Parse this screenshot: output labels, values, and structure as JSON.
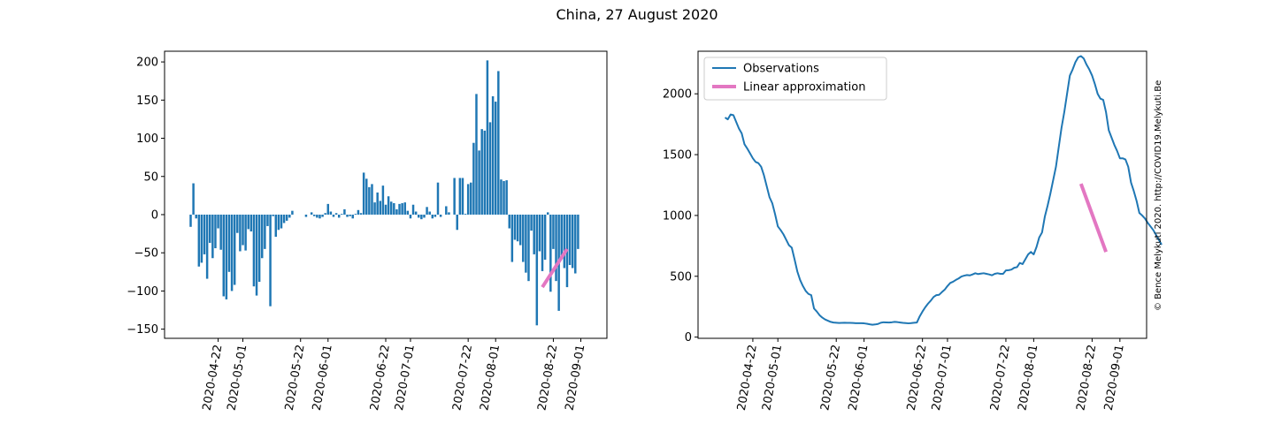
{
  "figure": {
    "suptitle": "China, 27 August 2020",
    "watermark": "© Bence Melykuti 2020. http://COVID19.Melykuti.Be"
  },
  "colors": {
    "observations": "#1f77b4",
    "approximation": "#e377c2",
    "axis": "#000000",
    "watermark": "#cccccc"
  },
  "chart_data": [
    {
      "type": "bar",
      "title": "",
      "xlabel": "",
      "ylabel": "",
      "x_start": "2020-04-12",
      "ylim": [
        -162,
        214
      ],
      "yticks": [
        "200",
        "150",
        "100",
        "50",
        "0",
        "−50",
        "−100",
        "−150"
      ],
      "ytick_values": [
        200,
        150,
        100,
        50,
        0,
        -50,
        -100,
        -150
      ],
      "xticks": [
        "2020-04-22",
        "2020-05-01",
        "2020-05-22",
        "2020-06-01",
        "2020-06-22",
        "2020-07-01",
        "2020-07-22",
        "2020-08-01",
        "2020-08-22",
        "2020-09-01"
      ],
      "values": [
        -16,
        41,
        -5,
        -68,
        -63,
        -52,
        -84,
        -37,
        -57,
        -44,
        -18,
        -46,
        -107,
        -111,
        -75,
        -100,
        -92,
        -24,
        -48,
        -40,
        -47,
        -19,
        -22,
        -94,
        -106,
        -88,
        -57,
        -45,
        -15,
        -120,
        -2,
        -29,
        -20,
        -18,
        -11,
        -8,
        -4,
        5,
        0,
        0,
        0,
        0,
        -3,
        0,
        3,
        -2,
        -4,
        -5,
        -3,
        2,
        14,
        4,
        -3,
        2,
        -4,
        1,
        7,
        -3,
        -2,
        -5,
        1,
        6,
        2,
        55,
        47,
        36,
        40,
        16,
        29,
        18,
        38,
        13,
        24,
        17,
        15,
        7,
        14,
        15,
        16,
        5,
        -5,
        13,
        4,
        -4,
        -6,
        -4,
        10,
        4,
        -5,
        -3,
        42,
        -3,
        0,
        11,
        3,
        0,
        48,
        -20,
        48,
        48,
        1,
        40,
        42,
        94,
        158,
        84,
        112,
        110,
        202,
        121,
        155,
        148,
        188,
        46,
        44,
        45,
        -18,
        -62,
        -33,
        -35,
        -40,
        -62,
        -76,
        -87,
        -21,
        -52,
        -145,
        -48,
        -74,
        -59,
        3,
        -101,
        -45,
        -87,
        -126,
        -57,
        -70,
        -95,
        -66,
        -70,
        -77,
        -45
      ],
      "series": [
        {
          "name": "",
          "kind": "bars"
        },
        {
          "name": "",
          "kind": "linear",
          "x_start": "2020-08-18",
          "x_end": "2020-08-27",
          "y_start": -95,
          "y_end": -45
        }
      ]
    },
    {
      "type": "line",
      "title": "",
      "xlabel": "",
      "ylabel": "",
      "x_start": "2020-04-12",
      "ylim": [
        -10,
        2350
      ],
      "yticks": [
        "0",
        "500",
        "1000",
        "1500",
        "2000"
      ],
      "ytick_values": [
        0,
        500,
        1000,
        1500,
        2000
      ],
      "xticks": [
        "2020-04-22",
        "2020-05-01",
        "2020-05-22",
        "2020-06-01",
        "2020-06-22",
        "2020-07-01",
        "2020-07-22",
        "2020-08-01",
        "2020-08-22",
        "2020-09-01"
      ],
      "legend": {
        "position": "upper-left",
        "entries": [
          "Observations",
          "Linear approximation"
        ]
      },
      "series": [
        {
          "name": "Observations",
          "values": [
            1805,
            1790,
            1830,
            1825,
            1770,
            1715,
            1675,
            1585,
            1550,
            1510,
            1470,
            1440,
            1430,
            1400,
            1330,
            1240,
            1150,
            1100,
            1010,
            910,
            880,
            845,
            800,
            755,
            735,
            640,
            540,
            470,
            420,
            380,
            355,
            345,
            235,
            210,
            180,
            160,
            145,
            135,
            125,
            120,
            118,
            116,
            117,
            118,
            117,
            117,
            116,
            114,
            114,
            114,
            113,
            110,
            105,
            102,
            104,
            108,
            118,
            122,
            121,
            120,
            122,
            125,
            123,
            120,
            117,
            115,
            113,
            115,
            118,
            120,
            170,
            210,
            245,
            275,
            300,
            330,
            345,
            348,
            370,
            390,
            420,
            445,
            455,
            470,
            482,
            498,
            505,
            510,
            507,
            515,
            525,
            518,
            522,
            525,
            520,
            515,
            508,
            520,
            525,
            520,
            520,
            548,
            550,
            555,
            570,
            575,
            610,
            600,
            640,
            680,
            700,
            680,
            740,
            820,
            860,
            990,
            1080,
            1180,
            1290,
            1400,
            1560,
            1720,
            1850,
            2000,
            2150,
            2200,
            2260,
            2300,
            2310,
            2290,
            2240,
            2200,
            2150,
            2080,
            2000,
            1960,
            1950,
            1850,
            1700,
            1640,
            1580,
            1530,
            1470,
            1470,
            1460,
            1400,
            1270,
            1200,
            1120,
            1020,
            1000,
            975,
            940,
            910,
            880,
            840,
            800,
            760
          ]
        },
        {
          "name": "Linear approximation",
          "kind": "linear",
          "x_start": "2020-08-18",
          "x_end": "2020-08-27",
          "y_start": 1260,
          "y_end": 700
        }
      ]
    }
  ]
}
